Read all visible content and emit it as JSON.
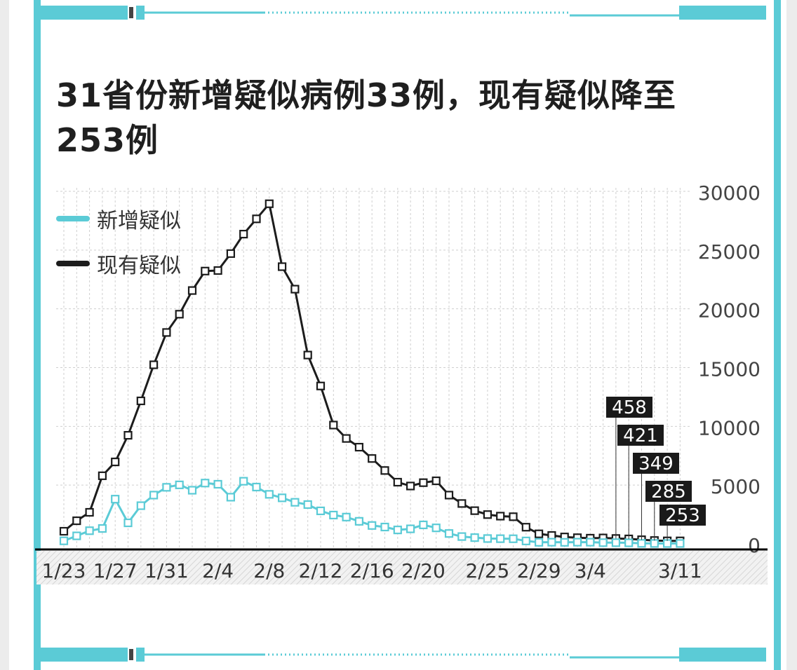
{
  "title": "31省份新增疑似病例33例，现有疑似降至253例",
  "colors": {
    "accent": "#5bcbd6",
    "dark": "#1c1c1c",
    "grid": "#cfcfcf",
    "label_bg": "#1a1a1a",
    "label_text": "#ffffff"
  },
  "legend": [
    {
      "name": "新增疑似",
      "color": "#5bcbd6"
    },
    {
      "name": "现有疑似",
      "color": "#1c1c1c"
    }
  ],
  "chart_data": {
    "type": "line",
    "title": "31省份新增疑似病例33例，现有疑似降至253例",
    "xlabel": "",
    "ylabel": "",
    "ylim": [
      0,
      30000
    ],
    "yticks": [
      0,
      5000,
      10000,
      15000,
      20000,
      25000,
      30000
    ],
    "grid": true,
    "legend_position": "top-left",
    "x": [
      "1/23",
      "1/24",
      "1/25",
      "1/26",
      "1/27",
      "1/28",
      "1/29",
      "1/30",
      "1/31",
      "2/1",
      "2/2",
      "2/3",
      "2/4",
      "2/5",
      "2/6",
      "2/7",
      "2/8",
      "2/9",
      "2/10",
      "2/11",
      "2/12",
      "2/13",
      "2/14",
      "2/15",
      "2/16",
      "2/17",
      "2/18",
      "2/19",
      "2/20",
      "2/21",
      "2/22",
      "2/23",
      "2/24",
      "2/25",
      "2/26",
      "2/27",
      "2/28",
      "2/29",
      "3/1",
      "3/2",
      "3/3",
      "3/4",
      "3/5",
      "3/6",
      "3/7",
      "3/8",
      "3/9",
      "3/10",
      "3/11"
    ],
    "x_tick_labels": [
      {
        "index": 0,
        "label": "1/23"
      },
      {
        "index": 4,
        "label": "1/27"
      },
      {
        "index": 8,
        "label": "1/31"
      },
      {
        "index": 12,
        "label": "2/4"
      },
      {
        "index": 16,
        "label": "2/8"
      },
      {
        "index": 20,
        "label": "2/12"
      },
      {
        "index": 24,
        "label": "2/16"
      },
      {
        "index": 28,
        "label": "2/20"
      },
      {
        "index": 33,
        "label": "2/25"
      },
      {
        "index": 37,
        "label": "2/29"
      },
      {
        "index": 41,
        "label": "3/4"
      },
      {
        "index": 48,
        "label": "3/11"
      }
    ],
    "series": [
      {
        "name": "新增疑似",
        "color": "#5bcbd6",
        "values": [
          257,
          680,
          1118,
          1309,
          3806,
          1788,
          3248,
          4148,
          4812,
          5019,
          4562,
          5173,
          5072,
          3971,
          5328,
          4833,
          4214,
          3916,
          3536,
          3342,
          2807,
          2450,
          2277,
          1918,
          1563,
          1432,
          1185,
          1277,
          1614,
          1361,
          882,
          620,
          530,
          452,
          439,
          433,
          248,
          132,
          141,
          129,
          143,
          143,
          102,
          99,
          89,
          41,
          36,
          31,
          33
        ]
      },
      {
        "name": "现有疑似",
        "color": "#1c1c1c",
        "values": [
          1072,
          1965,
          2684,
          5794,
          6973,
          9239,
          12167,
          15238,
          17988,
          19544,
          21558,
          23214,
          23260,
          24702,
          26359,
          27657,
          28942,
          23589,
          21675,
          16067,
          13435,
          10109,
          8969,
          8228,
          7264,
          6242,
          5248,
          4922,
          5206,
          5365,
          4148,
          3434,
          2824,
          2491,
          2358,
          2308,
          1418,
          851,
          715,
          587,
          522,
          482,
          502,
          458,
          421,
          349,
          285,
          253,
          253
        ]
      }
    ],
    "annotations": [
      {
        "label": "458",
        "index": 43
      },
      {
        "label": "421",
        "index": 44
      },
      {
        "label": "349",
        "index": 45
      },
      {
        "label": "285",
        "index": 46
      },
      {
        "label": "253",
        "index": 47
      }
    ]
  }
}
